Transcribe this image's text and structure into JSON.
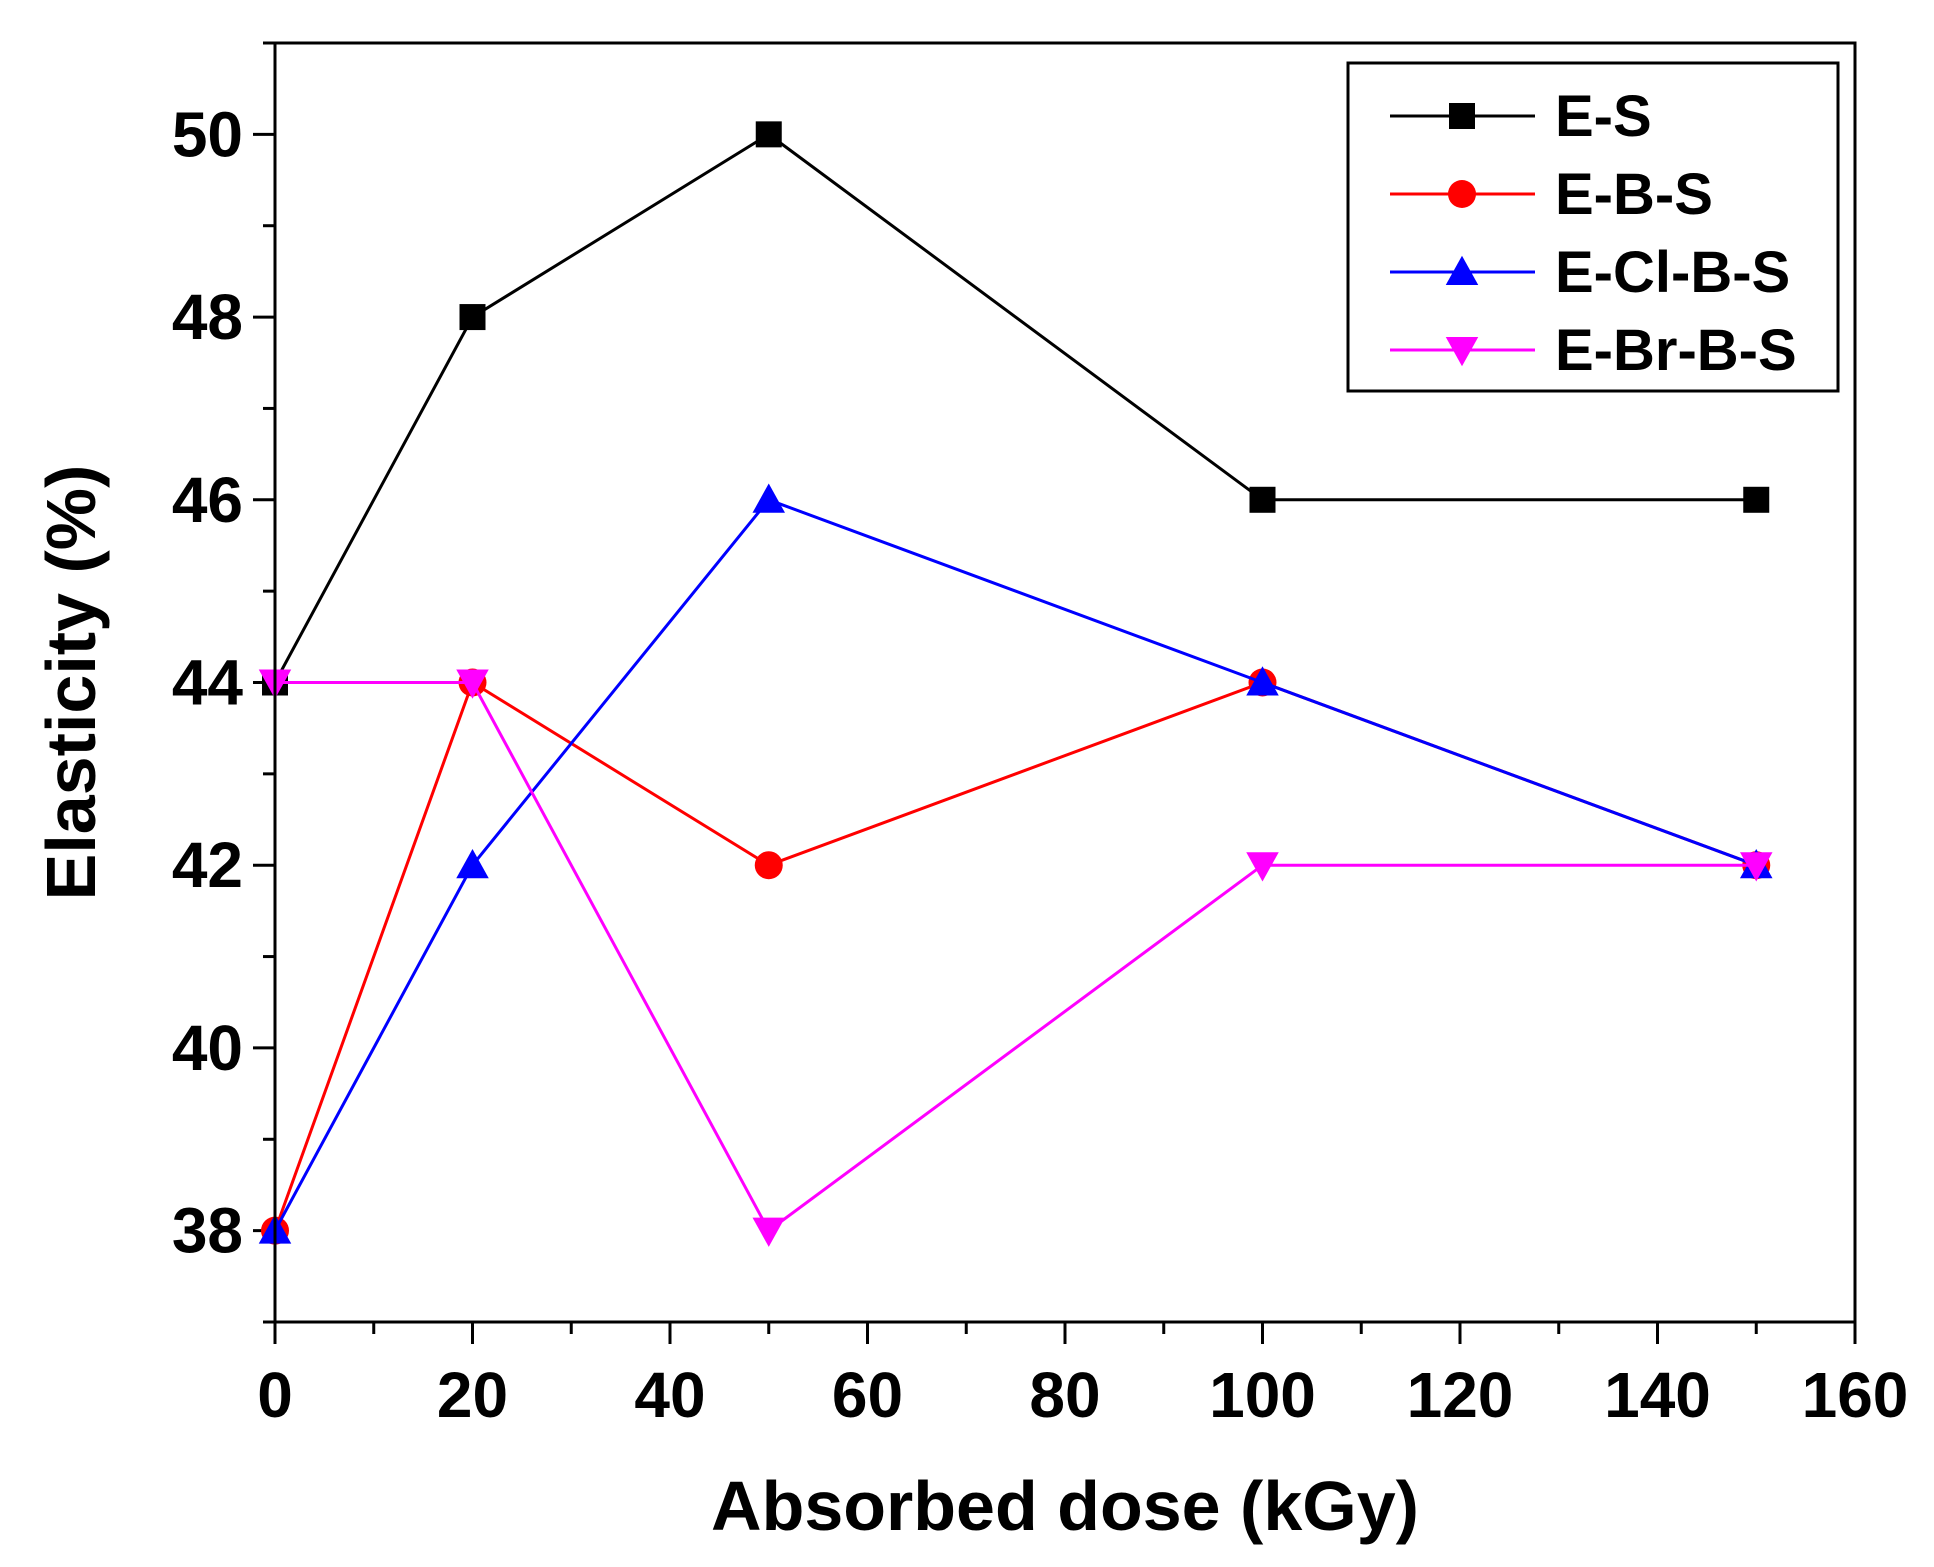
{
  "chart_data": {
    "type": "line",
    "title": "",
    "xlabel": "Absorbed dose (kGy)",
    "ylabel": "Elasticity (%)",
    "xlim": [
      0,
      160
    ],
    "ylim": [
      37,
      51
    ],
    "x_ticks": [
      0,
      20,
      40,
      60,
      80,
      100,
      120,
      140,
      160
    ],
    "x_tick_labels": [
      "0",
      "20",
      "40",
      "60",
      "80",
      "100",
      "120",
      "140",
      "160"
    ],
    "y_ticks": [
      38,
      40,
      42,
      44,
      46,
      48,
      50
    ],
    "y_tick_labels": [
      "38",
      "40",
      "42",
      "44",
      "46",
      "48",
      "50"
    ],
    "grid": false,
    "legend_position": "top-right",
    "x": [
      0,
      20,
      50,
      100,
      150
    ],
    "series": [
      {
        "name": "E-S",
        "values": [
          44,
          48,
          50,
          46,
          46
        ],
        "color": "#000000",
        "marker": "square"
      },
      {
        "name": "E-B-S",
        "values": [
          38,
          44,
          42,
          44,
          42
        ],
        "color": "#ff0000",
        "marker": "circle"
      },
      {
        "name": "E-Cl-B-S",
        "values": [
          38,
          42,
          46,
          44,
          42
        ],
        "color": "#0000ff",
        "marker": "triangle-up"
      },
      {
        "name": "E-Br-B-S",
        "values": [
          44,
          44,
          38,
          42,
          42
        ],
        "color": "#ff00ff",
        "marker": "triangle-down"
      }
    ]
  }
}
